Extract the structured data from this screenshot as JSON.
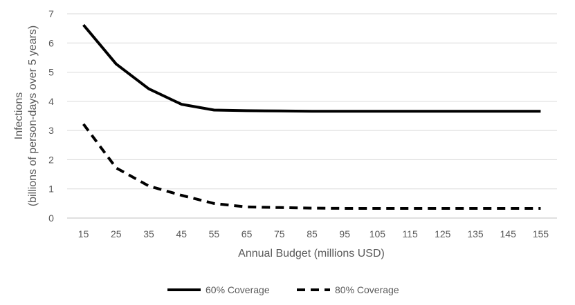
{
  "chart_data": {
    "type": "line",
    "title": "",
    "xlabel": "Annual Budget (millions USD)",
    "ylabel_line1": "Infections",
    "ylabel_line2": "(billions of person-days over 5 years)",
    "ylim": [
      0,
      7
    ],
    "yticks": [
      "0",
      "1",
      "2",
      "3",
      "4",
      "5",
      "6",
      "7"
    ],
    "categories": [
      "15",
      "25",
      "35",
      "45",
      "55",
      "65",
      "75",
      "85",
      "95",
      "105",
      "115",
      "125",
      "135",
      "145",
      "155"
    ],
    "gridlines": true,
    "legend_position": "bottom",
    "series": [
      {
        "name": "60% Coverage",
        "style": "solid",
        "color": "#000000",
        "values": [
          6.62,
          5.28,
          4.43,
          3.9,
          3.7,
          3.68,
          3.67,
          3.66,
          3.66,
          3.66,
          3.66,
          3.66,
          3.66,
          3.66,
          3.66
        ]
      },
      {
        "name": "80% Coverage",
        "style": "dashed",
        "color": "#000000",
        "values": [
          3.22,
          1.72,
          1.1,
          0.78,
          0.5,
          0.38,
          0.36,
          0.34,
          0.33,
          0.33,
          0.33,
          0.33,
          0.33,
          0.33,
          0.33
        ]
      }
    ]
  }
}
